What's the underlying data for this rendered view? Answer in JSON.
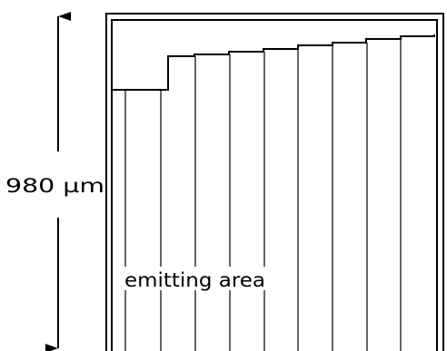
{
  "dimension": {
    "label": "980 µm"
  },
  "region": {
    "label": "emitting area"
  },
  "colors": {
    "ink": "#000000",
    "background": "#ffffff"
  }
}
